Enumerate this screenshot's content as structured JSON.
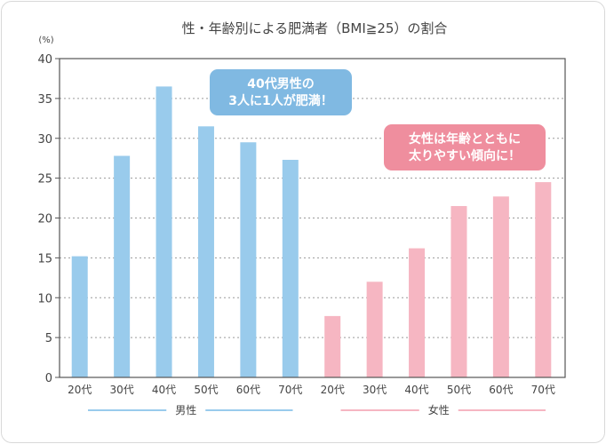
{
  "chart_data": {
    "type": "bar",
    "title": "性・年齢別による肥満者（BMI≧25）の割合",
    "ylabel": "(%)",
    "ylim": [
      0,
      40
    ],
    "yticks": [
      0,
      5,
      10,
      15,
      20,
      25,
      30,
      35,
      40
    ],
    "grid": "dashed-horizontal",
    "series": [
      {
        "name": "男性",
        "color": "#99cbec",
        "categories": [
          "20代",
          "30代",
          "40代",
          "50代",
          "60代",
          "70代"
        ],
        "values": [
          15.2,
          27.8,
          36.5,
          31.5,
          29.5,
          27.3
        ]
      },
      {
        "name": "女性",
        "color": "#f6b6c2",
        "categories": [
          "20代",
          "30代",
          "40代",
          "50代",
          "60代",
          "70代"
        ],
        "values": [
          7.7,
          12.0,
          16.2,
          21.5,
          22.7,
          24.5
        ]
      }
    ],
    "annotations": [
      {
        "lines": [
          "40代男性の",
          "3人に1人が肥満！"
        ],
        "color": "#80b9e2",
        "series": "男性"
      },
      {
        "lines": [
          "女性は年齢とともに",
          "太りやすい傾向に！"
        ],
        "color": "#ef8e9e",
        "series": "女性"
      }
    ]
  }
}
